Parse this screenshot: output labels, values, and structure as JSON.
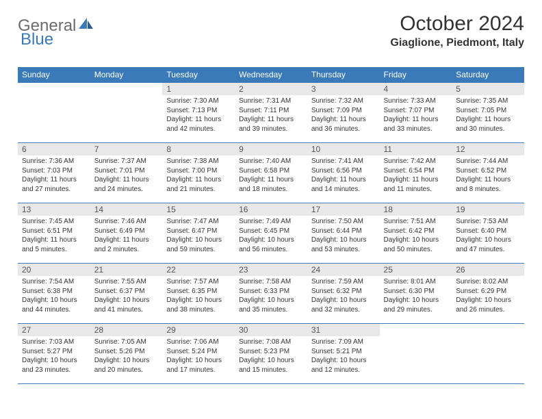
{
  "logo": {
    "word1": "General",
    "word2": "Blue"
  },
  "title": "October 2024",
  "location": "Giaglione, Piedmont, Italy",
  "colors": {
    "accent": "#3a7ab8",
    "daynum_bg": "#e8e8e8",
    "text": "#333333",
    "logo_gray": "#6b6b6b",
    "background": "#ffffff"
  },
  "fonts": {
    "title_pt": 30,
    "location_pt": 16,
    "dow_pt": 12,
    "daynum_pt": 12,
    "body_pt": 10
  },
  "days_of_week": [
    "Sunday",
    "Monday",
    "Tuesday",
    "Wednesday",
    "Thursday",
    "Friday",
    "Saturday"
  ],
  "weeks": [
    [
      null,
      null,
      {
        "n": "1",
        "sunrise": "7:30 AM",
        "sunset": "7:13 PM",
        "daylight": "11 hours and 42 minutes."
      },
      {
        "n": "2",
        "sunrise": "7:31 AM",
        "sunset": "7:11 PM",
        "daylight": "11 hours and 39 minutes."
      },
      {
        "n": "3",
        "sunrise": "7:32 AM",
        "sunset": "7:09 PM",
        "daylight": "11 hours and 36 minutes."
      },
      {
        "n": "4",
        "sunrise": "7:33 AM",
        "sunset": "7:07 PM",
        "daylight": "11 hours and 33 minutes."
      },
      {
        "n": "5",
        "sunrise": "7:35 AM",
        "sunset": "7:05 PM",
        "daylight": "11 hours and 30 minutes."
      }
    ],
    [
      {
        "n": "6",
        "sunrise": "7:36 AM",
        "sunset": "7:03 PM",
        "daylight": "11 hours and 27 minutes."
      },
      {
        "n": "7",
        "sunrise": "7:37 AM",
        "sunset": "7:01 PM",
        "daylight": "11 hours and 24 minutes."
      },
      {
        "n": "8",
        "sunrise": "7:38 AM",
        "sunset": "7:00 PM",
        "daylight": "11 hours and 21 minutes."
      },
      {
        "n": "9",
        "sunrise": "7:40 AM",
        "sunset": "6:58 PM",
        "daylight": "11 hours and 18 minutes."
      },
      {
        "n": "10",
        "sunrise": "7:41 AM",
        "sunset": "6:56 PM",
        "daylight": "11 hours and 14 minutes."
      },
      {
        "n": "11",
        "sunrise": "7:42 AM",
        "sunset": "6:54 PM",
        "daylight": "11 hours and 11 minutes."
      },
      {
        "n": "12",
        "sunrise": "7:44 AM",
        "sunset": "6:52 PM",
        "daylight": "11 hours and 8 minutes."
      }
    ],
    [
      {
        "n": "13",
        "sunrise": "7:45 AM",
        "sunset": "6:51 PM",
        "daylight": "11 hours and 5 minutes."
      },
      {
        "n": "14",
        "sunrise": "7:46 AM",
        "sunset": "6:49 PM",
        "daylight": "11 hours and 2 minutes."
      },
      {
        "n": "15",
        "sunrise": "7:47 AM",
        "sunset": "6:47 PM",
        "daylight": "10 hours and 59 minutes."
      },
      {
        "n": "16",
        "sunrise": "7:49 AM",
        "sunset": "6:45 PM",
        "daylight": "10 hours and 56 minutes."
      },
      {
        "n": "17",
        "sunrise": "7:50 AM",
        "sunset": "6:44 PM",
        "daylight": "10 hours and 53 minutes."
      },
      {
        "n": "18",
        "sunrise": "7:51 AM",
        "sunset": "6:42 PM",
        "daylight": "10 hours and 50 minutes."
      },
      {
        "n": "19",
        "sunrise": "7:53 AM",
        "sunset": "6:40 PM",
        "daylight": "10 hours and 47 minutes."
      }
    ],
    [
      {
        "n": "20",
        "sunrise": "7:54 AM",
        "sunset": "6:38 PM",
        "daylight": "10 hours and 44 minutes."
      },
      {
        "n": "21",
        "sunrise": "7:55 AM",
        "sunset": "6:37 PM",
        "daylight": "10 hours and 41 minutes."
      },
      {
        "n": "22",
        "sunrise": "7:57 AM",
        "sunset": "6:35 PM",
        "daylight": "10 hours and 38 minutes."
      },
      {
        "n": "23",
        "sunrise": "7:58 AM",
        "sunset": "6:33 PM",
        "daylight": "10 hours and 35 minutes."
      },
      {
        "n": "24",
        "sunrise": "7:59 AM",
        "sunset": "6:32 PM",
        "daylight": "10 hours and 32 minutes."
      },
      {
        "n": "25",
        "sunrise": "8:01 AM",
        "sunset": "6:30 PM",
        "daylight": "10 hours and 29 minutes."
      },
      {
        "n": "26",
        "sunrise": "8:02 AM",
        "sunset": "6:29 PM",
        "daylight": "10 hours and 26 minutes."
      }
    ],
    [
      {
        "n": "27",
        "sunrise": "7:03 AM",
        "sunset": "5:27 PM",
        "daylight": "10 hours and 23 minutes."
      },
      {
        "n": "28",
        "sunrise": "7:05 AM",
        "sunset": "5:26 PM",
        "daylight": "10 hours and 20 minutes."
      },
      {
        "n": "29",
        "sunrise": "7:06 AM",
        "sunset": "5:24 PM",
        "daylight": "10 hours and 17 minutes."
      },
      {
        "n": "30",
        "sunrise": "7:08 AM",
        "sunset": "5:23 PM",
        "daylight": "10 hours and 15 minutes."
      },
      {
        "n": "31",
        "sunrise": "7:09 AM",
        "sunset": "5:21 PM",
        "daylight": "10 hours and 12 minutes."
      },
      null,
      null
    ]
  ],
  "labels": {
    "sunrise_prefix": "Sunrise: ",
    "sunset_prefix": "Sunset: ",
    "daylight_prefix": "Daylight: "
  }
}
